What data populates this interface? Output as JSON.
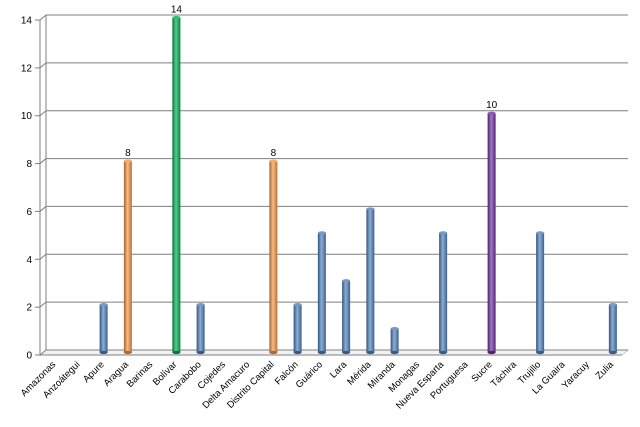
{
  "chart_data": {
    "type": "bar",
    "title": "",
    "xlabel": "",
    "ylabel": "",
    "ylim": [
      0,
      14
    ],
    "yticks": [
      0,
      2,
      4,
      6,
      8,
      10,
      12,
      14
    ],
    "grid": true,
    "legend": "none",
    "categories": [
      "Amazonas",
      "Anzoátegui",
      "Apure",
      "Aragua",
      "Barinas",
      "Bolívar",
      "Carabobo",
      "Cojedes",
      "Delta Amacuro",
      "Distrito Capital",
      "Falcón",
      "Guárico",
      "Lara",
      "Mérida",
      "Miranda",
      "Monagas",
      "Nueva Esparta",
      "Portuguesa",
      "Sucre",
      "Táchira",
      "Trujillo",
      "La Guaira",
      "Yaracuy",
      "Zulia"
    ],
    "values": [
      0,
      0,
      2,
      8,
      0,
      14,
      2,
      0,
      0,
      8,
      2,
      5,
      3,
      6,
      1,
      0,
      5,
      0,
      10,
      0,
      5,
      0,
      0,
      2
    ],
    "bar_colors": [
      "#4f81bd",
      "#4f81bd",
      "#4f81bd",
      "#f79646",
      "#4f81bd",
      "#00b050",
      "#4f81bd",
      "#4f81bd",
      "#4f81bd",
      "#f79646",
      "#4f81bd",
      "#4f81bd",
      "#4f81bd",
      "#4f81bd",
      "#4f81bd",
      "#4f81bd",
      "#4f81bd",
      "#4f81bd",
      "#7030a0",
      "#4f81bd",
      "#4f81bd",
      "#4f81bd",
      "#4f81bd",
      "#4f81bd"
    ],
    "data_labels": [
      {
        "category": "Aragua",
        "text": "8"
      },
      {
        "category": "Bolívar",
        "text": "14"
      },
      {
        "category": "Distrito Capital",
        "text": "8"
      },
      {
        "category": "Sucre",
        "text": "10"
      }
    ],
    "grid_color": "#7f7f7f"
  }
}
